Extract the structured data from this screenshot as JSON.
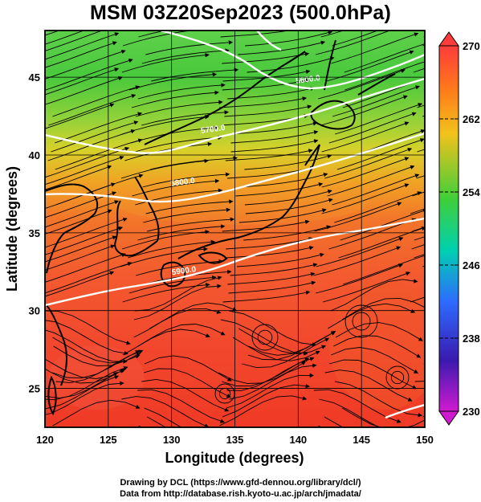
{
  "title": "MSM 03Z20Sep2023 (500.0hPa)",
  "map": {
    "lon_range": [
      120,
      150
    ],
    "lat_range": [
      22.5,
      48
    ],
    "x_ticks": [
      120,
      125,
      130,
      135,
      140,
      145,
      150
    ],
    "y_ticks": [
      25,
      30,
      35,
      40,
      45
    ],
    "xlabel": "Longitude (degrees)",
    "ylabel": "Latitude  (degrees)",
    "grid": true,
    "contour_labels": [
      {
        "text": "5600.0",
        "lon": 140.8,
        "lat": 44.7
      },
      {
        "text": "5700.0",
        "lon": 133.3,
        "lat": 41.5
      },
      {
        "text": "5800.0",
        "lon": 130.9,
        "lat": 38.1
      },
      {
        "text": "5900.0",
        "lon": 131.0,
        "lat": 32.4
      }
    ]
  },
  "colorbar": {
    "min": 230,
    "max": 270,
    "tick_labels": [
      "270",
      "262",
      "254",
      "246",
      "238",
      "230"
    ],
    "colors": [
      "#ff3b3b",
      "#ff7a1a",
      "#f2c21a",
      "#3fcf3a",
      "#00d0b0",
      "#2e6cff",
      "#3a1ab0",
      "#d01ad0"
    ]
  },
  "credits": {
    "line1": "Drawing by DCL (https://www.gfd-dennou.org/library/dcl/)",
    "line2": "Data from http://database.rish.kyoto-u.ac.jp/arch/jmadata/"
  }
}
